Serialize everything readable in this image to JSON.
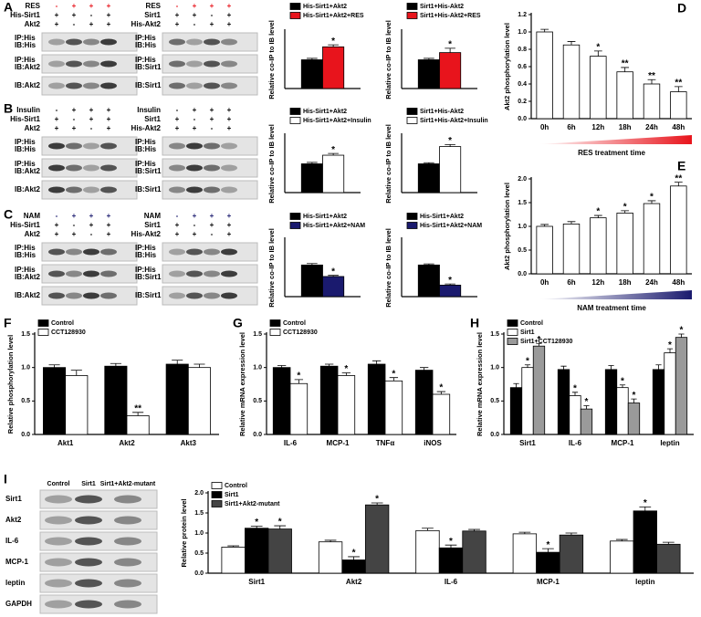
{
  "panel_letters": [
    "A",
    "B",
    "C",
    "D",
    "E",
    "F",
    "G",
    "H",
    "I"
  ],
  "blots": [
    {
      "header": [
        {
          "label": "RES",
          "signs": [
            "-",
            "+",
            "+",
            "+"
          ],
          "color": "#e8141c"
        },
        {
          "label": "His-Sirt1",
          "signs": [
            "+",
            "+",
            "-",
            "+"
          ]
        },
        {
          "label": "Akt2",
          "signs": [
            "+",
            "-",
            "+",
            "+"
          ]
        }
      ],
      "rows": [
        [
          "IP:His",
          "IB:His"
        ],
        [
          "IP:His",
          "IB:Akt2"
        ],
        [
          "IB:Akt2"
        ]
      ]
    },
    {
      "header": [
        {
          "label": "RES",
          "signs": [
            "-",
            "+",
            "+",
            "+"
          ],
          "color": "#e8141c"
        },
        {
          "label": "Sirt1",
          "signs": [
            "+",
            "+",
            "-",
            "+"
          ]
        },
        {
          "label": "His-Akt2",
          "signs": [
            "+",
            "-",
            "+",
            "+"
          ]
        }
      ],
      "rows": [
        [
          "IP:His",
          "IB:His"
        ],
        [
          "IP:His",
          "IB:Sirt1"
        ],
        [
          "IB:Sirt1"
        ]
      ]
    },
    {
      "header": [
        {
          "label": "Insulin",
          "signs": [
            "-",
            "+",
            "+",
            "+"
          ]
        },
        {
          "label": "His-Sirt1",
          "signs": [
            "+",
            "-",
            "+",
            "+"
          ]
        },
        {
          "label": "Akt2",
          "signs": [
            "+",
            "+",
            "-",
            "+"
          ]
        }
      ],
      "rows": [
        [
          "IP:His",
          "IB:His"
        ],
        [
          "IP:His",
          "IB:Akt2"
        ],
        [
          "IB:Akt2"
        ]
      ]
    },
    {
      "header": [
        {
          "label": "Insulin",
          "signs": [
            "-",
            "+",
            "+",
            "+"
          ]
        },
        {
          "label": "Sirt1",
          "signs": [
            "+",
            "-",
            "+",
            "+"
          ]
        },
        {
          "label": "His-Akt2",
          "signs": [
            "+",
            "+",
            "-",
            "+"
          ]
        }
      ],
      "rows": [
        [
          "IP:His",
          "IB:His"
        ],
        [
          "IP:His",
          "IB:Sirt1"
        ],
        [
          "IB:Sirt1"
        ]
      ]
    },
    {
      "header": [
        {
          "label": "NAM",
          "signs": [
            "-",
            "+",
            "+",
            "+"
          ],
          "color": "#1a1a6e"
        },
        {
          "label": "His-Sirt1",
          "signs": [
            "+",
            "-",
            "+",
            "+"
          ]
        },
        {
          "label": "Akt2",
          "signs": [
            "+",
            "+",
            "-",
            "+"
          ]
        }
      ],
      "rows": [
        [
          "IP:His",
          "IB:His"
        ],
        [
          "IP:His",
          "IB:Akt2"
        ],
        [
          "IB:Akt2"
        ]
      ]
    },
    {
      "header": [
        {
          "label": "NAM",
          "signs": [
            "-",
            "+",
            "+",
            "+"
          ],
          "color": "#1a1a6e"
        },
        {
          "label": "Sirt1",
          "signs": [
            "+",
            "-",
            "+",
            "+"
          ]
        },
        {
          "label": "His-Akt2",
          "signs": [
            "+",
            "+",
            "-",
            "+"
          ]
        }
      ],
      "rows": [
        [
          "IP:His",
          "IB:His"
        ],
        [
          "IP:His",
          "IB:Sirt1"
        ],
        [
          "IB:Sirt1"
        ]
      ]
    }
  ],
  "blot_i": {
    "lanes": [
      "Control",
      "Sirt1",
      "Sirt1+Akt2-mutant"
    ],
    "rows": [
      "Sirt1",
      "Akt2",
      "IL-6",
      "MCP-1",
      "leptin",
      "GAPDH"
    ]
  },
  "chart_data": [
    {
      "type": "bar",
      "y_label": "Relative co-IP to IB level",
      "ylim": [
        0,
        2
      ],
      "legend": "top",
      "series": [
        {
          "name": "His-Sirt1+Akt2",
          "color": "#000000",
          "values": [
            1.0
          ],
          "errors": [
            0.05
          ],
          "annotations": [
            null
          ]
        },
        {
          "name": "His-Sirt1+Akt2+RES",
          "color": "#e8141c",
          "values": [
            1.45
          ],
          "errors": [
            0.07
          ],
          "annotations": [
            "*"
          ]
        }
      ]
    },
    {
      "type": "bar",
      "y_label": "Relative co-IP to IB level",
      "ylim": [
        0,
        2
      ],
      "legend": "top",
      "series": [
        {
          "name": "Sirt1+His-Akt2",
          "color": "#000000",
          "values": [
            1.0
          ],
          "errors": [
            0.05
          ],
          "annotations": [
            null
          ]
        },
        {
          "name": "Sirt1+His-Akt2+RES",
          "color": "#e8141c",
          "values": [
            1.25
          ],
          "errors": [
            0.15
          ],
          "annotations": [
            "*"
          ]
        }
      ]
    },
    {
      "type": "bar",
      "y_label": "Relative co-IP to IB level",
      "ylim": [
        0,
        2
      ],
      "legend": "top",
      "series": [
        {
          "name": "His-Sirt1+Akt2",
          "color": "#000000",
          "values": [
            1.0
          ],
          "errors": [
            0.05
          ],
          "annotations": [
            null
          ]
        },
        {
          "name": "His-Sirt1+Akt2+Insulin",
          "color": "#ffffff",
          "values": [
            1.3
          ],
          "errors": [
            0.06
          ],
          "annotations": [
            "*"
          ]
        }
      ]
    },
    {
      "type": "bar",
      "y_label": "Relative co-IP to IB level",
      "ylim": [
        0,
        2
      ],
      "legend": "top",
      "series": [
        {
          "name": "Sirt1+His-Akt2",
          "color": "#000000",
          "values": [
            1.0
          ],
          "errors": [
            0.04
          ],
          "annotations": [
            null
          ]
        },
        {
          "name": "Sirt1+His-Akt2+Insulin",
          "color": "#ffffff",
          "values": [
            1.6
          ],
          "errors": [
            0.07
          ],
          "annotations": [
            "*"
          ]
        }
      ]
    },
    {
      "type": "bar",
      "y_label": "Relative co-IP to IB level",
      "ylim": [
        0,
        2
      ],
      "legend": "top",
      "series": [
        {
          "name": "His-Sirt1+Akt2",
          "color": "#000000",
          "values": [
            1.1
          ],
          "errors": [
            0.05
          ],
          "annotations": [
            null
          ]
        },
        {
          "name": "His-Sirt1+Akt2+NAM",
          "color": "#1a1a6e",
          "values": [
            0.7
          ],
          "errors": [
            0.04
          ],
          "annotations": [
            "*"
          ]
        }
      ]
    },
    {
      "type": "bar",
      "y_label": "Relative co-IP to IB level",
      "ylim": [
        0,
        2
      ],
      "legend": "top",
      "series": [
        {
          "name": "His-Sirt1+Akt2",
          "color": "#000000",
          "values": [
            1.1
          ],
          "errors": [
            0.04
          ],
          "annotations": [
            null
          ]
        },
        {
          "name": "His-Sirt1+Akt2+NAM",
          "color": "#1a1a6e",
          "values": [
            0.4
          ],
          "errors": [
            0.04
          ],
          "annotations": [
            "*"
          ]
        }
      ]
    },
    {
      "type": "bar",
      "y_label": "Akt2 phosphorylation level",
      "x_label": "RES treatment time",
      "ramp_color": "#e8141c",
      "categories": [
        "0h",
        "6h",
        "12h",
        "18h",
        "24h",
        "48h"
      ],
      "color": "#ffffff",
      "values": [
        1.0,
        0.85,
        0.72,
        0.54,
        0.4,
        0.31
      ],
      "errors": [
        0.03,
        0.04,
        0.06,
        0.05,
        0.05,
        0.06
      ],
      "annotations": [
        null,
        null,
        "*",
        "**",
        "**",
        "**"
      ],
      "ylim": [
        0,
        1.2
      ],
      "yticks": [
        {
          "value": 0,
          "label": "0.0"
        },
        0.2,
        0.4,
        0.6,
        0.8,
        {
          "value": 1,
          "label": "1.0"
        },
        1.2
      ]
    },
    {
      "type": "bar",
      "y_label": "Akt2 phosphorylation level",
      "x_label": "NAM treatment time",
      "ramp_color": "#1a1a6e",
      "categories": [
        "0h",
        "6h",
        "12h",
        "18h",
        "24h",
        "48h"
      ],
      "color": "#ffffff",
      "values": [
        1.0,
        1.05,
        1.18,
        1.28,
        1.48,
        1.85
      ],
      "errors": [
        0.04,
        0.05,
        0.05,
        0.05,
        0.06,
        0.08
      ],
      "annotations": [
        null,
        null,
        "*",
        "*",
        "*",
        "**"
      ],
      "ylim": [
        0,
        2
      ],
      "yticks": [
        {
          "value": 0,
          "label": "0.0"
        },
        0.5,
        {
          "value": 1,
          "label": "1.0"
        },
        1.5,
        {
          "value": 2,
          "label": "2.0"
        }
      ]
    },
    {
      "type": "bar",
      "y_label": "Relative phosphorylation level",
      "legend": "upper left",
      "categories": [
        "Akt1",
        "Akt2",
        "Akt3"
      ],
      "series": [
        {
          "name": "Control",
          "color": "#000000",
          "values": [
            1.0,
            1.02,
            1.05
          ],
          "errors": [
            0.04,
            0.04,
            0.06
          ],
          "annotations": [
            null,
            null,
            null
          ]
        },
        {
          "name": "CCT128930",
          "color": "#ffffff",
          "values": [
            0.88,
            0.28,
            1.0
          ],
          "errors": [
            0.08,
            0.05,
            0.05
          ],
          "annotations": [
            null,
            "**",
            null
          ]
        }
      ],
      "ylim": [
        0,
        1.5
      ],
      "yticks": [
        {
          "value": 0,
          "label": "0.0"
        },
        0.5,
        {
          "value": 1,
          "label": "1.0"
        },
        1.5
      ]
    },
    {
      "type": "bar",
      "y_label": "Relative mRNA expression level",
      "legend": "upper left",
      "categories": [
        "IL-6",
        "MCP-1",
        "TNFα",
        "iNOS"
      ],
      "series": [
        {
          "name": "Control",
          "color": "#000000",
          "values": [
            1.0,
            1.02,
            1.05,
            0.96
          ],
          "errors": [
            0.03,
            0.03,
            0.05,
            0.04
          ],
          "annotations": [
            null,
            null,
            null,
            null
          ]
        },
        {
          "name": "CCT128930",
          "color": "#ffffff",
          "values": [
            0.76,
            0.88,
            0.8,
            0.6
          ],
          "errors": [
            0.06,
            0.04,
            0.05,
            0.04
          ],
          "annotations": [
            "*",
            "*",
            "*",
            "*"
          ]
        }
      ],
      "ylim": [
        0,
        1.5
      ],
      "yticks": [
        {
          "value": 0,
          "label": "0.0"
        },
        0.5,
        {
          "value": 1,
          "label": "1.0"
        },
        1.5
      ]
    },
    {
      "type": "bar",
      "y_label": "Relative mRNA expression level",
      "legend": "upper left",
      "categories": [
        "Sirt1",
        "IL-6",
        "MCP-1",
        "leptin"
      ],
      "series": [
        {
          "name": "Control",
          "color": "#000000",
          "values": [
            0.7,
            0.97,
            0.97,
            0.97
          ],
          "errors": [
            0.06,
            0.05,
            0.06,
            0.07
          ],
          "annotations": [
            null,
            null,
            null,
            null
          ]
        },
        {
          "name": "Sirt1",
          "color": "#ffffff",
          "values": [
            1.0,
            0.58,
            0.7,
            1.22
          ],
          "errors": [
            0.04,
            0.05,
            0.04,
            0.06
          ],
          "annotations": [
            "*",
            "*",
            "*",
            "*"
          ]
        },
        {
          "name": "Sirt1+CCT128930",
          "color": "#9a9a9a",
          "values": [
            1.32,
            0.38,
            0.47,
            1.45
          ],
          "errors": [
            0.04,
            0.05,
            0.06,
            0.05
          ],
          "annotations": [
            "*",
            "*",
            "*",
            "*"
          ]
        }
      ],
      "ylim": [
        0,
        1.5
      ],
      "yticks": [
        {
          "value": 0,
          "label": "0.0"
        },
        0.5,
        {
          "value": 1,
          "label": "1.0"
        },
        1.5
      ]
    },
    {
      "type": "bar",
      "y_label": "Relative protein level",
      "legend": "upper left",
      "categories": [
        "Sirt1",
        "Akt2",
        "IL-6",
        "MCP-1",
        "leptin"
      ],
      "series": [
        {
          "name": "Control",
          "color": "#ffffff",
          "values": [
            0.65,
            0.78,
            1.06,
            0.98,
            0.8
          ],
          "errors": [
            0.03,
            0.04,
            0.06,
            0.04,
            0.04
          ],
          "annotations": [
            null,
            null,
            null,
            null,
            null
          ]
        },
        {
          "name": "Sirt1",
          "color": "#000000",
          "values": [
            1.12,
            0.33,
            0.63,
            0.52,
            1.55
          ],
          "errors": [
            0.05,
            0.08,
            0.07,
            0.09,
            0.1
          ],
          "annotations": [
            "*",
            "*",
            "*",
            "*",
            "*"
          ]
        },
        {
          "name": "Sirt1+Akt2-mutant",
          "color": "#444444",
          "values": [
            1.1,
            1.7,
            1.05,
            0.95,
            0.72
          ],
          "errors": [
            0.08,
            0.05,
            0.04,
            0.05,
            0.05
          ],
          "annotations": [
            "*",
            "*",
            null,
            null,
            null
          ]
        }
      ],
      "ylim": [
        0,
        2
      ],
      "yticks": [
        {
          "value": 0,
          "label": "0.0"
        },
        0.5,
        {
          "value": 1,
          "label": "1.0"
        },
        1.5,
        {
          "value": 2,
          "label": "2.0"
        }
      ]
    }
  ]
}
